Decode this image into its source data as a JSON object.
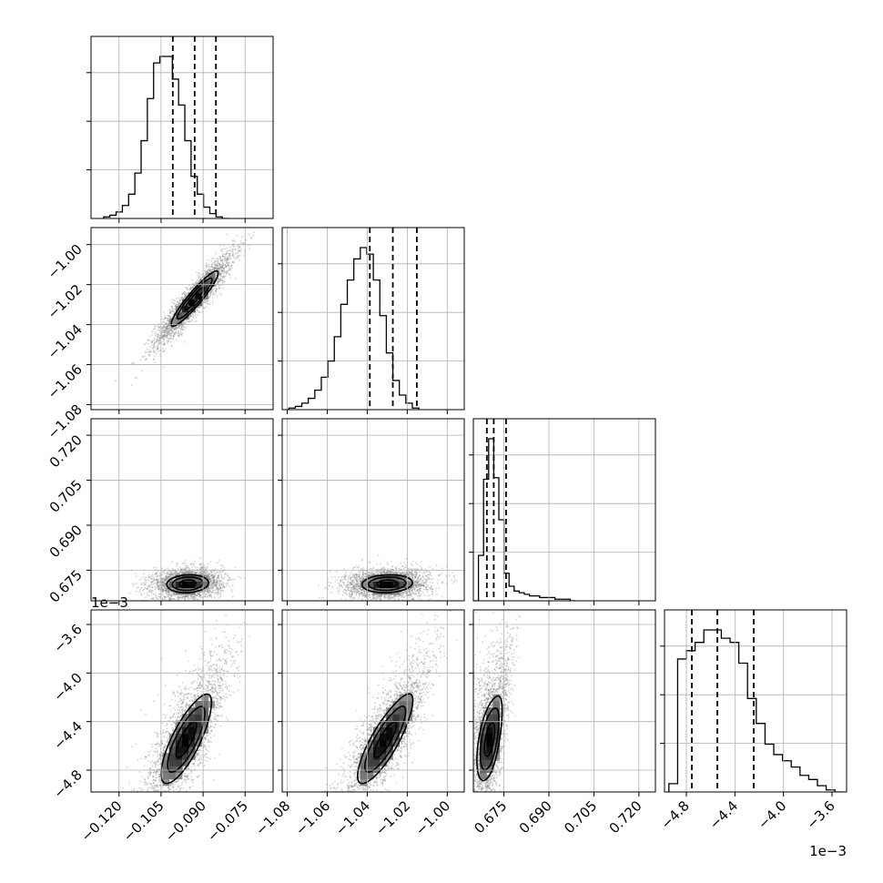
{
  "chart_data": {
    "type": "scatter",
    "plot_kind": "corner",
    "title": "",
    "n_parameters": 4,
    "parameters": [
      {
        "label": "",
        "range": [
          -0.13,
          -0.065
        ],
        "ticks": [
          -0.12,
          -0.105,
          -0.09,
          -0.075
        ],
        "tick_labels": [
          "−0.120",
          "−0.105",
          "−0.090",
          "−0.075"
        ],
        "median": -0.093,
        "quantile_16": -0.1008,
        "quantile_84": -0.0854,
        "scale_text": ""
      },
      {
        "label": "",
        "range": [
          -1.0825,
          -0.9915
        ],
        "ticks": [
          -1.08,
          -1.06,
          -1.04,
          -1.02,
          -1.0
        ],
        "tick_labels": [
          "−1.08",
          "−1.06",
          "−1.04",
          "−1.02",
          "−1.00"
        ],
        "median": -1.0272,
        "quantile_16": -1.0387,
        "quantile_84": -1.0152,
        "scale_text": ""
      },
      {
        "label": "",
        "range": [
          0.6648,
          0.7255
        ],
        "ticks": [
          0.675,
          0.69,
          0.705,
          0.72
        ],
        "tick_labels": [
          "0.675",
          "0.690",
          "0.705",
          "0.720"
        ],
        "median": 0.6716,
        "quantile_16": 0.6693,
        "quantile_84": 0.6757,
        "scale_text": ""
      },
      {
        "label": "",
        "range": [
          -4.98,
          -3.48
        ],
        "ticks": [
          -4.8,
          -4.4,
          -4.0,
          -3.6
        ],
        "tick_labels": [
          "−4.8",
          "−4.4",
          "−4.0",
          "−3.6"
        ],
        "median": -4.545,
        "quantile_16": -4.755,
        "quantile_84": -4.245,
        "scale_text": "1e−3"
      }
    ],
    "histograms": [
      {
        "parameter": 0,
        "bin_edges_start": -0.1255,
        "bin_width": 0.00223,
        "counts": [
          1,
          2,
          4,
          8,
          15,
          28,
          48,
          74,
          96,
          100,
          100,
          86,
          70,
          48,
          26,
          15,
          7,
          3,
          1,
          0
        ]
      },
      {
        "parameter": 1,
        "bin_edges_start": -1.0792,
        "bin_width": 0.00325,
        "counts": [
          1,
          2,
          4,
          7,
          12,
          20,
          30,
          45,
          65,
          80,
          93,
          100,
          96,
          80,
          58,
          35,
          18,
          9,
          4,
          1
        ]
      },
      {
        "parameter": 2,
        "bin_edges_start": 0.6648,
        "bin_width": 0.0017,
        "counts": [
          0,
          28,
          75,
          100,
          76,
          50,
          17,
          9,
          6,
          5,
          4,
          3,
          3,
          2,
          2,
          2,
          1,
          1,
          1,
          0
        ]
      },
      {
        "parameter": 3,
        "bin_edges_start": -4.944,
        "bin_width": 0.072,
        "counts": [
          4,
          64,
          68,
          72,
          78,
          78,
          74,
          72,
          62,
          45,
          33,
          23,
          18,
          15,
          12,
          8,
          6,
          3,
          1,
          0
        ]
      }
    ],
    "scatter_pairs": [
      {
        "x_param": 0,
        "y_param": 1,
        "mean": [
          -0.093,
          -1.027
        ],
        "std": [
          0.007,
          0.0115
        ],
        "correlation": 0.93,
        "skew_y": 0
      },
      {
        "x_param": 0,
        "y_param": 2,
        "mean": [
          -0.0955,
          0.6705
        ],
        "std": [
          0.0062,
          0.0025
        ],
        "correlation": 0.1,
        "skew_y": 0.008
      },
      {
        "x_param": 1,
        "y_param": 2,
        "mean": [
          -1.03,
          0.6705
        ],
        "std": [
          0.0105,
          0.0025
        ],
        "correlation": 0.1,
        "skew_y": 0.008
      },
      {
        "x_param": 0,
        "y_param": 3,
        "mean": [
          -0.096,
          -4.55
        ],
        "std": [
          0.0075,
          0.3
        ],
        "correlation": 0.78,
        "skew_y": 0.1
      },
      {
        "x_param": 1,
        "y_param": 3,
        "mean": [
          -1.031,
          -4.55
        ],
        "std": [
          0.0115,
          0.3
        ],
        "correlation": 0.83,
        "skew_y": 0.1
      },
      {
        "x_param": 2,
        "y_param": 3,
        "mean": [
          0.6702,
          -4.55
        ],
        "std": [
          0.0035,
          0.28
        ],
        "correlation": 0.5,
        "skew_y": 0.3
      }
    ],
    "contour_levels": [
      0.5,
      1.0,
      1.6
    ],
    "grid": true,
    "legend": "none",
    "colors": {
      "points": "#808080",
      "density": "#000000",
      "lines": "#000000",
      "grid": "#b0b0b0"
    }
  }
}
